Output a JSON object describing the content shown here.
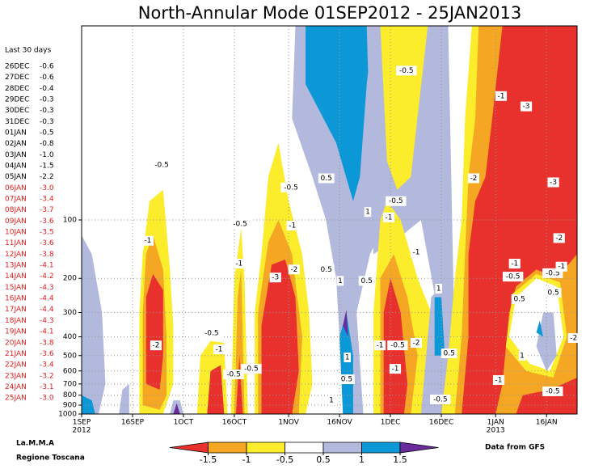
{
  "chart_data": {
    "type": "contour",
    "title": "North-Annular Mode 01SEP2012 - 25JAN2013",
    "xlim": [
      0,
      146
    ],
    "ylim": [
      1000,
      10
    ],
    "log_y": true,
    "grid": true,
    "xticks": [
      {
        "value": 0,
        "label": "1SEP",
        "year": "2012"
      },
      {
        "value": 15,
        "label": "16SEP"
      },
      {
        "value": 30,
        "label": "1OCT"
      },
      {
        "value": 45,
        "label": "16OCT"
      },
      {
        "value": 61,
        "label": "1NOV"
      },
      {
        "value": 76,
        "label": "16NOV"
      },
      {
        "value": 91,
        "label": "1DEC"
      },
      {
        "value": 106,
        "label": "16DEC"
      },
      {
        "value": 122,
        "label": "1JAN",
        "year": "2013"
      },
      {
        "value": 137,
        "label": "16JAN"
      }
    ],
    "yticks": [
      100,
      200,
      300,
      400,
      500,
      600,
      700,
      800,
      900,
      1000
    ],
    "colorbar": {
      "levels": [
        -1.5,
        -1,
        -0.5,
        0.5,
        1,
        1.5
      ],
      "colors": [
        "#e8302c",
        "#f5a623",
        "#fbec2c",
        "#ffffff",
        "#b3b9dd",
        "#0c97d6",
        "#6a2c9c"
      ]
    },
    "regions": [
      {
        "band": 4,
        "x": [
          0,
          0,
          3,
          6,
          7,
          5
        ],
        "y": [
          1000,
          120,
          150,
          300,
          700,
          1000
        ]
      },
      {
        "band": 5,
        "x": [
          0,
          0,
          3,
          4
        ],
        "y": [
          1000,
          800,
          850,
          1000
        ]
      },
      {
        "band": 4,
        "x": [
          11,
          12,
          14,
          14
        ],
        "y": [
          1000,
          750,
          700,
          1000
        ]
      },
      {
        "band": 2,
        "x": [
          17,
          17,
          18,
          20,
          24,
          26,
          27,
          27,
          24
        ],
        "y": [
          1000,
          300,
          150,
          80,
          70,
          180,
          350,
          700,
          1000
        ]
      },
      {
        "band": 1,
        "x": [
          18,
          18,
          19,
          21,
          24,
          25,
          25,
          23
        ],
        "y": [
          900,
          300,
          150,
          120,
          180,
          400,
          800,
          950
        ]
      },
      {
        "band": 0,
        "x": [
          19,
          19,
          21,
          24,
          24,
          23
        ],
        "y": [
          700,
          250,
          190,
          230,
          500,
          750
        ]
      },
      {
        "band": 4,
        "x": [
          26,
          27,
          29,
          30
        ],
        "y": [
          1000,
          850,
          850,
          1000
        ]
      },
      {
        "band": 6,
        "x": [
          27,
          28,
          29
        ],
        "y": [
          1000,
          880,
          1000
        ]
      },
      {
        "band": 2,
        "x": [
          34,
          35,
          38,
          42,
          43
        ],
        "y": [
          1000,
          500,
          420,
          430,
          1000
        ]
      },
      {
        "band": 0,
        "x": [
          37,
          38,
          41,
          42
        ],
        "y": [
          1000,
          600,
          560,
          1000
        ]
      },
      {
        "band": 2,
        "x": [
          44,
          45,
          47,
          48,
          49
        ],
        "y": [
          1000,
          200,
          110,
          200,
          1000
        ]
      },
      {
        "band": 1,
        "x": [
          45,
          46,
          47,
          48
        ],
        "y": [
          1000,
          250,
          180,
          1000
        ]
      },
      {
        "band": 0,
        "x": [
          45.5,
          46.5,
          47.5
        ],
        "y": [
          1000,
          500,
          1000
        ]
      },
      {
        "band": 4,
        "x": [
          63,
          62,
          68,
          72,
          75,
          76,
          77,
          83,
          81,
          85,
          90,
          93
        ],
        "y": [
          10,
          30,
          60,
          100,
          200,
          400,
          1000,
          1000,
          300,
          150,
          100,
          10
        ]
      },
      {
        "band": 5,
        "x": [
          66,
          66,
          75,
          80,
          82,
          84,
          86
        ],
        "y": [
          10,
          20,
          40,
          80,
          60,
          20,
          10
        ]
      },
      {
        "band": 2,
        "x": [
          51,
          51,
          53,
          55,
          58,
          61,
          65,
          67,
          68,
          66
        ],
        "y": [
          1000,
          300,
          150,
          60,
          40,
          80,
          150,
          300,
          700,
          1000
        ]
      },
      {
        "band": 1,
        "x": [
          52,
          52,
          55,
          58,
          62,
          65,
          64
        ],
        "y": [
          1000,
          300,
          130,
          100,
          150,
          400,
          1000
        ]
      },
      {
        "band": 0,
        "x": [
          53,
          53,
          56,
          60,
          63,
          64,
          62
        ],
        "y": [
          1000,
          350,
          170,
          160,
          250,
          600,
          1000
        ]
      },
      {
        "band": 5,
        "x": [
          77,
          76,
          78,
          80,
          80
        ],
        "y": [
          1000,
          400,
          300,
          500,
          1000
        ]
      },
      {
        "band": 6,
        "x": [
          77,
          78,
          78.5
        ],
        "y": [
          350,
          290,
          400
        ]
      },
      {
        "band": 4,
        "x": [
          84,
          86,
          92,
          100,
          105,
          110,
          108
        ],
        "y": [
          10,
          150,
          130,
          100,
          300,
          500,
          10
        ]
      },
      {
        "band": 2,
        "x": [
          88,
          90,
          93,
          97,
          102
        ],
        "y": [
          10,
          50,
          70,
          60,
          10
        ]
      },
      {
        "band": 2,
        "x": [
          86,
          86,
          88,
          90,
          94,
          99,
          103,
          104,
          100
        ],
        "y": [
          1000,
          300,
          100,
          80,
          100,
          200,
          300,
          700,
          1000
        ]
      },
      {
        "band": 1,
        "x": [
          88,
          88,
          92,
          96,
          99,
          97
        ],
        "y": [
          1000,
          200,
          150,
          250,
          500,
          1000
        ]
      },
      {
        "band": 0,
        "x": [
          89,
          89,
          91,
          94,
          96,
          95
        ],
        "y": [
          1000,
          300,
          200,
          300,
          700,
          1000
        ]
      },
      {
        "band": 4,
        "x": [
          100,
          103,
          108,
          112,
          110
        ],
        "y": [
          1000,
          250,
          200,
          400,
          1000
        ]
      },
      {
        "band": 5,
        "x": [
          104,
          104,
          106,
          107
        ],
        "y": [
          500,
          250,
          250,
          500
        ]
      },
      {
        "band": 2,
        "x": [
          106,
          108,
          110,
          112,
          113,
          115,
          146,
          146
        ],
        "y": [
          1000,
          500,
          200,
          100,
          30,
          10,
          10,
          1000
        ]
      },
      {
        "band": 1,
        "x": [
          110,
          112,
          113,
          114,
          116,
          117,
          146,
          146
        ],
        "y": [
          1000,
          400,
          150,
          60,
          30,
          10,
          10,
          1000
        ]
      },
      {
        "band": 0,
        "x": [
          112,
          114,
          114,
          116,
          119,
          121,
          124,
          146,
          146,
          140,
          134,
          128,
          126,
          124,
          122
        ],
        "y": [
          1000,
          400,
          150,
          80,
          60,
          30,
          10,
          10,
          150,
          200,
          180,
          220,
          300,
          700,
          1000
        ]
      },
      {
        "band": 2,
        "x": [
          125,
          127,
          134,
          141,
          143,
          139,
          131
        ],
        "y": [
          450,
          240,
          190,
          210,
          400,
          650,
          600
        ]
      },
      {
        "band": 3,
        "x": [
          126,
          128,
          134,
          140,
          142,
          138,
          132
        ],
        "y": [
          400,
          250,
          200,
          220,
          400,
          600,
          550
        ]
      },
      {
        "band": 4,
        "x": [
          134,
          136,
          139,
          140,
          137
        ],
        "y": [
          450,
          300,
          300,
          500,
          600
        ]
      },
      {
        "band": 5,
        "x": [
          134,
          135,
          136
        ],
        "y": [
          380,
          330,
          400
        ]
      },
      {
        "band": 0,
        "x": [
          128,
          130,
          138,
          146,
          146
        ],
        "y": [
          1000,
          800,
          750,
          650,
          1000
        ]
      }
    ],
    "contour_labels": [
      {
        "x": 23.6,
        "y": 52,
        "value": -0.5
      },
      {
        "x": 19.5,
        "y": 128,
        "value": -1
      },
      {
        "x": 21.9,
        "y": 443,
        "value": -2
      },
      {
        "x": 38.3,
        "y": 383,
        "value": -0.5
      },
      {
        "x": 40.5,
        "y": 464,
        "value": -1
      },
      {
        "x": 44.8,
        "y": 625,
        "value": -0.5
      },
      {
        "x": 50,
        "y": 585,
        "value": -0.5
      },
      {
        "x": 46.7,
        "y": 105,
        "value": -0.5
      },
      {
        "x": 46.4,
        "y": 168,
        "value": -1
      },
      {
        "x": 61.7,
        "y": 68,
        "value": -0.5
      },
      {
        "x": 62.1,
        "y": 107,
        "value": -1
      },
      {
        "x": 57.1,
        "y": 198,
        "value": -3
      },
      {
        "x": 62.6,
        "y": 180,
        "value": -2
      },
      {
        "x": 72.1,
        "y": 61,
        "value": 0.5
      },
      {
        "x": 84.3,
        "y": 91,
        "value": 1
      },
      {
        "x": 72.1,
        "y": 180,
        "value": 0.5
      },
      {
        "x": 76.2,
        "y": 206,
        "value": 1
      },
      {
        "x": 84,
        "y": 206,
        "value": 0.5
      },
      {
        "x": 78.3,
        "y": 511,
        "value": 1
      },
      {
        "x": 78.1,
        "y": 662,
        "value": 0.5
      },
      {
        "x": 73.6,
        "y": 849,
        "value": 1
      },
      {
        "x": 95.7,
        "y": 17,
        "value": -0.5
      },
      {
        "x": 92.6,
        "y": 80,
        "value": -0.5
      },
      {
        "x": 90.5,
        "y": 97,
        "value": -1
      },
      {
        "x": 98.6,
        "y": 147,
        "value": -1
      },
      {
        "x": 87.9,
        "y": 443,
        "value": -1
      },
      {
        "x": 93.1,
        "y": 443,
        "value": -0.5
      },
      {
        "x": 98.6,
        "y": 430,
        "value": -2
      },
      {
        "x": 92.4,
        "y": 585,
        "value": -1
      },
      {
        "x": 105.2,
        "y": 226,
        "value": 1
      },
      {
        "x": 108.3,
        "y": 487,
        "value": 0.5
      },
      {
        "x": 105.7,
        "y": 841,
        "value": -0.5
      },
      {
        "x": 123.6,
        "y": 23,
        "value": -1
      },
      {
        "x": 131,
        "y": 26,
        "value": -3
      },
      {
        "x": 115.5,
        "y": 61,
        "value": -2
      },
      {
        "x": 139,
        "y": 64,
        "value": -3
      },
      {
        "x": 140.7,
        "y": 124,
        "value": -2
      },
      {
        "x": 127.6,
        "y": 168,
        "value": -1
      },
      {
        "x": 138.8,
        "y": 188,
        "value": -0.5
      },
      {
        "x": 141.4,
        "y": 174,
        "value": -1
      },
      {
        "x": 127.1,
        "y": 196,
        "value": -0.5
      },
      {
        "x": 139,
        "y": 237,
        "value": 0.5
      },
      {
        "x": 129,
        "y": 256,
        "value": 0.5
      },
      {
        "x": 129.8,
        "y": 501,
        "value": 1
      },
      {
        "x": 122.9,
        "y": 668,
        "value": -1
      },
      {
        "x": 138.8,
        "y": 764,
        "value": -0.5
      },
      {
        "x": 145,
        "y": 406,
        "value": -2
      }
    ]
  },
  "last30": {
    "title": "Last 30 days",
    "dates": [
      "26DEC",
      "27DEC",
      "28DEC",
      "29DEC",
      "30DEC",
      "31DEC",
      "01JAN",
      "02JAN",
      "03JAN",
      "04JAN",
      "05JAN",
      "06JAN",
      "07JAN",
      "08JAN",
      "09JAN",
      "10JAN",
      "11JAN",
      "12JAN",
      "13JAN",
      "14JAN",
      "15JAN",
      "16JAN",
      "17JAN",
      "18JAN",
      "19JAN",
      "20JAN",
      "21JAN",
      "22JAN",
      "23JAN",
      "24JAN",
      "25JAN"
    ],
    "values": [
      -0.6,
      -0.6,
      -0.4,
      -0.3,
      -0.3,
      -0.3,
      -0.5,
      -0.8,
      -1.0,
      -1.5,
      -2.2,
      -3.0,
      -3.4,
      -3.7,
      -3.6,
      -3.5,
      -3.6,
      -3.8,
      -4.1,
      -4.2,
      -4.3,
      -4.4,
      -4.4,
      -4.3,
      -4.1,
      -3.8,
      -3.6,
      -3.4,
      -3.2,
      -3.1,
      -3.0
    ],
    "value_labels": [
      "-0.6",
      "-0.6",
      "-0.4",
      "-0.3",
      "-0.3",
      "-0.3",
      "-0.5",
      "-0.8",
      "-1.0",
      "-1.5",
      "-2.2",
      "-3.0",
      "-3.4",
      "-3.7",
      "-3.6",
      "-3.5",
      "-3.6",
      "-3.8",
      "-4.1",
      "-4.2",
      "-4.3",
      "-4.4",
      "-4.4",
      "-4.3",
      "-4.1",
      "-3.8",
      "-3.6",
      "-3.4",
      "-3.2",
      "-3.1",
      "-3.0"
    ],
    "colors": [
      "#000000",
      "#000000",
      "#000000",
      "#000000",
      "#000000",
      "#000000",
      "#000000",
      "#000000",
      "#000000",
      "#000000",
      "#000000",
      "#e02020",
      "#e02020",
      "#e02020",
      "#e02020",
      "#e02020",
      "#e02020",
      "#e02020",
      "#e02020",
      "#e02020",
      "#e02020",
      "#e02020",
      "#e02020",
      "#e02020",
      "#e02020",
      "#e02020",
      "#e02020",
      "#e02020",
      "#e02020",
      "#e02020",
      "#e02020"
    ]
  },
  "footer": {
    "left_1": "La.M.M.A",
    "left_2": "Regione Toscana",
    "right": "Data from GFS"
  }
}
